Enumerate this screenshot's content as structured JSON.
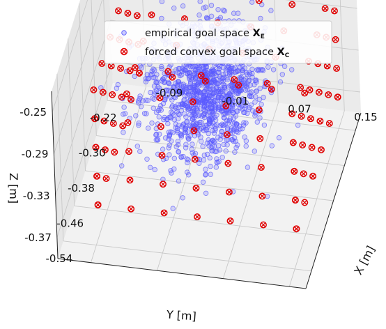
{
  "chart_data": {
    "type": "scatter",
    "projection": "3d",
    "xlabel": "X [m]",
    "ylabel": "Y [m]",
    "zlabel": "Z [m]",
    "x_ticks": [
      "-0.09",
      "-0.01",
      "0.07",
      "0.15"
    ],
    "y_ticks": [
      "-0.54",
      "-0.46",
      "-0.38",
      "-0.30",
      "-0.22"
    ],
    "z_ticks": [
      "-0.25",
      "-0.29",
      "-0.33",
      "-0.37"
    ],
    "xlim": [
      -0.13,
      0.17
    ],
    "ylim": [
      -0.58,
      -0.18
    ],
    "zlim": [
      -0.39,
      -0.23
    ],
    "grid": true,
    "legend_position": "top",
    "series": [
      {
        "name": "empirical goal space",
        "name_symbol": "X",
        "name_subscript": "E",
        "marker": "open-circle",
        "color": "#5a5aff",
        "approx_count": 1200,
        "center": {
          "x": 0.02,
          "y": -0.38,
          "z": -0.3
        },
        "spread": {
          "x": 0.035,
          "y": 0.06,
          "z": 0.022
        }
      },
      {
        "name": "forced convex goal space",
        "name_symbol": "X",
        "name_subscript": "C",
        "marker": "circled-x",
        "color": "#e00000",
        "grid_x": [
          -0.09,
          -0.05,
          -0.01,
          0.03,
          0.07,
          0.11,
          0.15
        ],
        "grid_y": [
          -0.52,
          -0.46,
          -0.4,
          -0.34,
          -0.28,
          -0.22
        ],
        "z_levels": [
          -0.36,
          -0.25
        ]
      }
    ]
  }
}
